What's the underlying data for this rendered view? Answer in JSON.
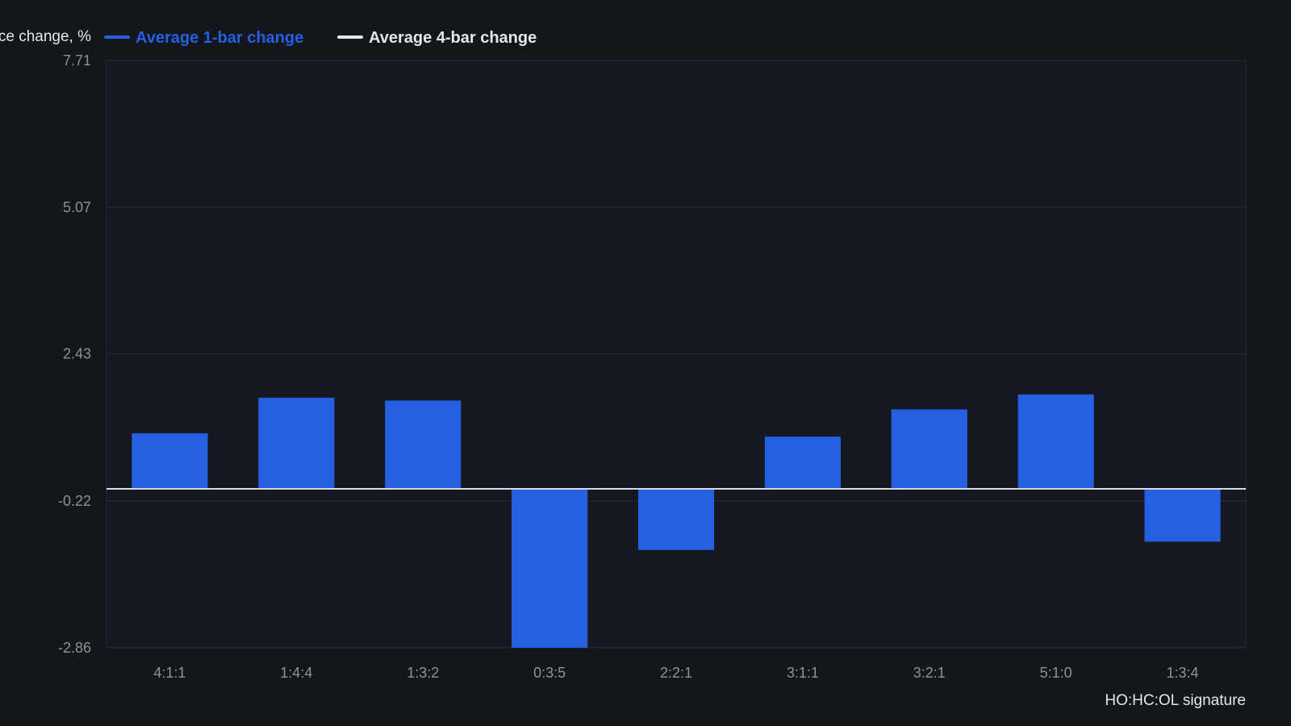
{
  "chart_data": {
    "type": "bar",
    "title": "",
    "ylabel": "ce change, %",
    "xlabel": "HO:HC:OL signature",
    "ylim": [
      -2.86,
      7.71
    ],
    "y_ticks": [
      "7.71",
      "5.07",
      "2.43",
      "-0.22",
      "-2.86"
    ],
    "y_tick_values": [
      7.71,
      5.07,
      2.43,
      -0.22,
      -2.86
    ],
    "categories": [
      "4:1:1",
      "1:4:4",
      "1:3:2",
      "0:3:5",
      "2:2:1",
      "3:1:1",
      "3:2:1",
      "5:1:0",
      "1:3:4"
    ],
    "baseline": 0,
    "grid": true,
    "legend_position": "top-left",
    "series": [
      {
        "name": "Average 1-bar change",
        "color": "#2660e2",
        "render": "bar",
        "values": [
          1.0,
          1.64,
          1.59,
          -2.86,
          -1.1,
          0.94,
          1.43,
          1.7,
          -0.95
        ]
      },
      {
        "name": "Average 4-bar change",
        "color": "#e6e6e6",
        "render": "line"
      }
    ]
  },
  "colors": {
    "background": "#13161b",
    "plot_background": "#151820",
    "grid": "#2a2e36",
    "bar": "#2660e2",
    "baseline": "#d9dadd"
  }
}
